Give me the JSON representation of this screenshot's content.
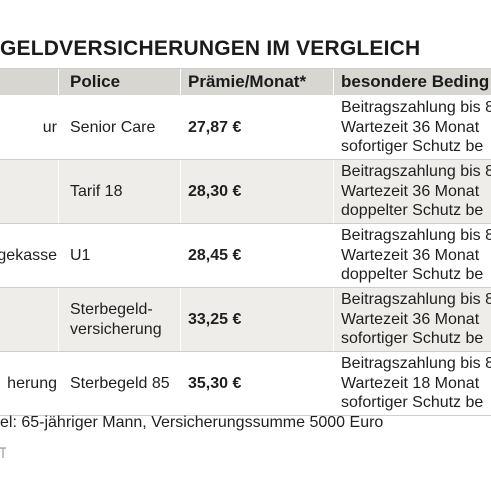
{
  "title": "GELDVERSICHERUNGEN IM VERGLEICH",
  "table": {
    "headers": {
      "provider": "",
      "policy": "Police",
      "premium": "Prämie/Monat*",
      "conditions": "besondere Beding"
    },
    "rows": [
      {
        "provider": "ur",
        "policy": [
          "Senior Care"
        ],
        "premium": "27,87 €",
        "conditions": [
          "Beitragszahlung bis 8",
          "Wartezeit 36 Monat",
          "sofortiger Schutz be"
        ],
        "shaded": false
      },
      {
        "provider": "",
        "policy": [
          "Tarif 18"
        ],
        "premium": "28,30 €",
        "conditions": [
          "Beitragszahlung bis 8",
          "Wartezeit 36 Monat",
          "doppelter Schutz be"
        ],
        "shaded": true
      },
      {
        "provider": "gekasse",
        "policy": [
          "U1"
        ],
        "premium": "28,45 €",
        "conditions": [
          "Beitragszahlung bis 8",
          "Wartezeit 36 Monat",
          "doppelter Schutz be"
        ],
        "shaded": false
      },
      {
        "provider": "",
        "policy": [
          "Sterbegeld-",
          "versicherung"
        ],
        "premium": "33,25 €",
        "conditions": [
          "Beitragszahlung bis 8",
          "Wartezeit 36 Monat",
          "sofortiger Schutz be"
        ],
        "shaded": true
      },
      {
        "provider": "herung",
        "policy": [
          "Sterbegeld 85"
        ],
        "premium": "35,30 €",
        "conditions": [
          "Beitragszahlung bis 8",
          "Wartezeit 18 Monat",
          "sofortiger Schutz be"
        ],
        "shaded": false
      }
    ]
  },
  "footnote": "el: 65-jähriger Mann, Versicherungssumme 5000 Euro",
  "colors": {
    "header_bg": "#d7d6d1",
    "shaded_row_bg": "#eeede9",
    "rule": "#cfcec9",
    "text": "#1b1b1b"
  }
}
